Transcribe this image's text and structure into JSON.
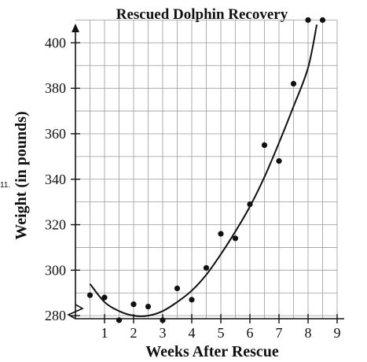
{
  "question_number": "11.",
  "chart_data": {
    "type": "scatter",
    "title": "Rescued Dolphin Recovery",
    "xlabel": "Weeks After Rescue",
    "ylabel": "Weight (in pounds)",
    "xlim": [
      0,
      9
    ],
    "ylim": [
      270,
      410
    ],
    "x_ticks": [
      1,
      2,
      3,
      4,
      5,
      6,
      7,
      8,
      9
    ],
    "y_ticks": [
      280,
      300,
      320,
      340,
      360,
      380,
      400
    ],
    "y_axis_break": true,
    "grid": true,
    "points": [
      {
        "x": 0.5,
        "y": 289
      },
      {
        "x": 1.0,
        "y": 288
      },
      {
        "x": 1.5,
        "y": 278
      },
      {
        "x": 2.0,
        "y": 285
      },
      {
        "x": 2.5,
        "y": 284
      },
      {
        "x": 3.0,
        "y": 278
      },
      {
        "x": 3.5,
        "y": 292
      },
      {
        "x": 4.0,
        "y": 287
      },
      {
        "x": 4.5,
        "y": 301
      },
      {
        "x": 5.0,
        "y": 316
      },
      {
        "x": 5.5,
        "y": 314
      },
      {
        "x": 6.0,
        "y": 329
      },
      {
        "x": 6.5,
        "y": 355
      },
      {
        "x": 7.0,
        "y": 348
      },
      {
        "x": 7.5,
        "y": 382
      },
      {
        "x": 8.0,
        "y": 410
      },
      {
        "x": 8.5,
        "y": 410
      }
    ],
    "trend_curve": {
      "type": "quadratic",
      "points": [
        {
          "x": 0.5,
          "y": 294
        },
        {
          "x": 1.0,
          "y": 286
        },
        {
          "x": 1.5,
          "y": 282
        },
        {
          "x": 2.0,
          "y": 280
        },
        {
          "x": 2.5,
          "y": 280
        },
        {
          "x": 3.0,
          "y": 282
        },
        {
          "x": 3.5,
          "y": 286
        },
        {
          "x": 4.0,
          "y": 291
        },
        {
          "x": 4.5,
          "y": 298
        },
        {
          "x": 5.0,
          "y": 307
        },
        {
          "x": 5.5,
          "y": 317
        },
        {
          "x": 6.0,
          "y": 328
        },
        {
          "x": 6.5,
          "y": 341
        },
        {
          "x": 7.0,
          "y": 356
        },
        {
          "x": 7.5,
          "y": 372
        },
        {
          "x": 8.0,
          "y": 389
        },
        {
          "x": 8.3,
          "y": 408
        }
      ]
    }
  }
}
